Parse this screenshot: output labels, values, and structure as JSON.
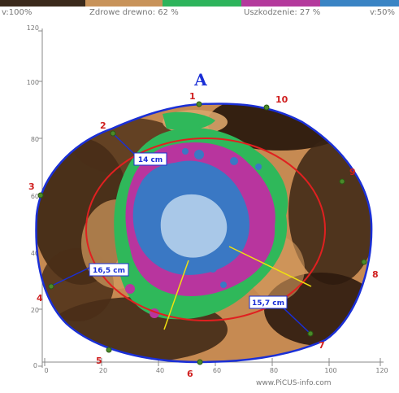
{
  "legend": {
    "left_value": "v:100%",
    "healthy_label": "Zdrowe drewno: 62 %",
    "damage_label": "Uszkodzenie: 27 %",
    "right_value": "v:50%",
    "segments": [
      {
        "name": "dark",
        "color": "#3b2a1c"
      },
      {
        "name": "brown",
        "color": "#c8935a"
      },
      {
        "name": "green",
        "color": "#2eb45c"
      },
      {
        "name": "magenta",
        "color": "#b43a9c"
      },
      {
        "name": "blue",
        "color": "#3a84c4"
      }
    ]
  },
  "y_axis": {
    "ticks": [
      "0",
      "20",
      "40",
      "60",
      "80",
      "100",
      "120"
    ]
  },
  "x_axis": {
    "ticks": [
      "0",
      "20",
      "40",
      "60",
      "80",
      "100",
      "120"
    ]
  },
  "measure_points": [
    "1",
    "2",
    "3",
    "4",
    "5",
    "6",
    "7",
    "8",
    "9",
    "10"
  ],
  "distances": [
    "14 cm",
    "16,5 cm",
    "15,7 cm"
  ],
  "north_marker": "A",
  "credit": "www.PiCUS-info.com",
  "colors": {
    "outline": "#1a2fd6",
    "inner_ring": "#e02020",
    "point_label": "#d02020",
    "measure_line": "#f0e010"
  }
}
